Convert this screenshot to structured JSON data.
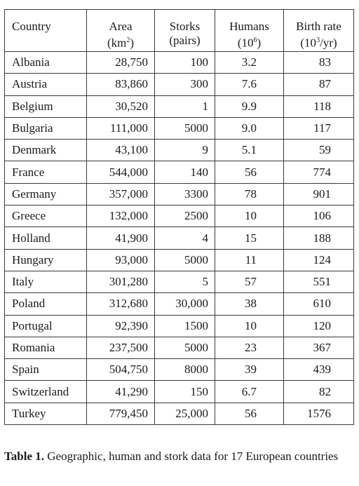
{
  "table": {
    "headers": {
      "country": "Country",
      "area_line1": "Area",
      "area_line2": "(km",
      "area_sup": "2",
      "area_close": ")",
      "storks_line1": "Storks",
      "storks_line2": "(pairs)",
      "humans_line1": "Humans",
      "humans_line2": "(10",
      "humans_sup": "6",
      "humans_close": ")",
      "birth_line1": "Birth rate",
      "birth_line2": "(10",
      "birth_sup": "3",
      "birth_close": "/yr)"
    },
    "rows": [
      {
        "country": "Albania",
        "area": "28,750",
        "storks": "100",
        "humans": "3.2",
        "birth": "83"
      },
      {
        "country": "Austria",
        "area": "83,860",
        "storks": "300",
        "humans": "7.6",
        "birth": "87"
      },
      {
        "country": "Belgium",
        "area": "30,520",
        "storks": "1",
        "humans": "9.9",
        "birth": "118"
      },
      {
        "country": "Bulgaria",
        "area": "111,000",
        "storks": "5000",
        "humans": "9.0",
        "birth": "117"
      },
      {
        "country": "Denmark",
        "area": "43,100",
        "storks": "9",
        "humans": "5.1",
        "birth": "59"
      },
      {
        "country": "France",
        "area": "544,000",
        "storks": "140",
        "humans": "56",
        "birth": "774"
      },
      {
        "country": "Germany",
        "area": "357,000",
        "storks": "3300",
        "humans": "78",
        "birth": "901"
      },
      {
        "country": "Greece",
        "area": "132,000",
        "storks": "2500",
        "humans": "10",
        "birth": "106"
      },
      {
        "country": "Holland",
        "area": "41,900",
        "storks": "4",
        "humans": "15",
        "birth": "188"
      },
      {
        "country": "Hungary",
        "area": "93,000",
        "storks": "5000",
        "humans": "11",
        "birth": "124"
      },
      {
        "country": "Italy",
        "area": "301,280",
        "storks": "5",
        "humans": "57",
        "birth": "551"
      },
      {
        "country": "Poland",
        "area": "312,680",
        "storks": "30,000",
        "humans": "38",
        "birth": "610"
      },
      {
        "country": "Portugal",
        "area": "92,390",
        "storks": "1500",
        "humans": "10",
        "birth": "120"
      },
      {
        "country": "Romania",
        "area": "237,500",
        "storks": "5000",
        "humans": "23",
        "birth": "367"
      },
      {
        "country": "Spain",
        "area": "504,750",
        "storks": "8000",
        "humans": "39",
        "birth": "439"
      },
      {
        "country": "Switzerland",
        "area": "41,290",
        "storks": "150",
        "humans": "6.7",
        "birth": "82"
      },
      {
        "country": "Turkey",
        "area": "779,450",
        "storks": "25,000",
        "humans": "56",
        "birth": "1576"
      }
    ]
  },
  "caption": {
    "label": "Table 1.",
    "text": "Geographic, human and stork data for 17 European countries"
  }
}
